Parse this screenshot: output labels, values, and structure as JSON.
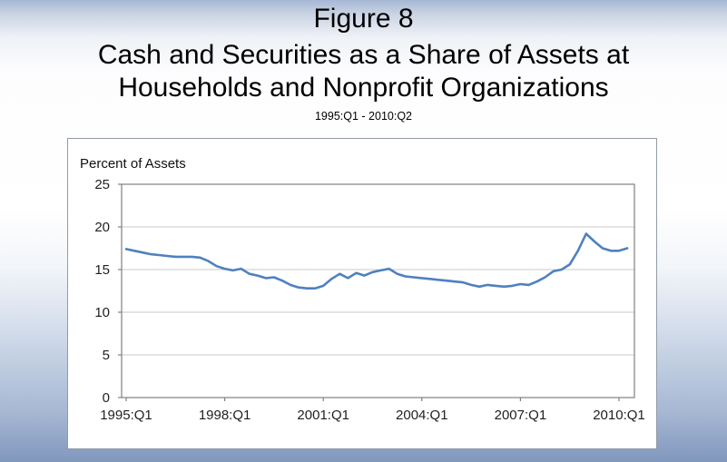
{
  "slide": {
    "figure_label": "Figure 8",
    "title_line1": "Cash and Securities as a Share of Assets at",
    "title_line2": "Households and Nonprofit Organizations",
    "subtitle": "1995:Q1 - 2010:Q2"
  },
  "chart_data": {
    "type": "line",
    "title": "Cash and Securities as a Share of Assets at Households and Nonprofit Organizations",
    "period": "1995:Q1 - 2010:Q2",
    "ylabel": "Percent of Assets",
    "xlabel": "",
    "ylim": [
      0,
      25
    ],
    "y_ticks": [
      0,
      5,
      10,
      15,
      20,
      25
    ],
    "x_tick_labels": [
      "1995:Q1",
      "1998:Q1",
      "2001:Q1",
      "2004:Q1",
      "2007:Q1",
      "2010:Q1"
    ],
    "x_tick_indices": [
      0,
      12,
      24,
      36,
      48,
      60
    ],
    "grid": "horizontal",
    "legend_position": "none",
    "x": [
      "1995:Q1",
      "1995:Q2",
      "1995:Q3",
      "1995:Q4",
      "1996:Q1",
      "1996:Q2",
      "1996:Q3",
      "1996:Q4",
      "1997:Q1",
      "1997:Q2",
      "1997:Q3",
      "1997:Q4",
      "1998:Q1",
      "1998:Q2",
      "1998:Q3",
      "1998:Q4",
      "1999:Q1",
      "1999:Q2",
      "1999:Q3",
      "1999:Q4",
      "2000:Q1",
      "2000:Q2",
      "2000:Q3",
      "2000:Q4",
      "2001:Q1",
      "2001:Q2",
      "2001:Q3",
      "2001:Q4",
      "2002:Q1",
      "2002:Q2",
      "2002:Q3",
      "2002:Q4",
      "2003:Q1",
      "2003:Q2",
      "2003:Q3",
      "2003:Q4",
      "2004:Q1",
      "2004:Q2",
      "2004:Q3",
      "2004:Q4",
      "2005:Q1",
      "2005:Q2",
      "2005:Q3",
      "2005:Q4",
      "2006:Q1",
      "2006:Q2",
      "2006:Q3",
      "2006:Q4",
      "2007:Q1",
      "2007:Q2",
      "2007:Q3",
      "2007:Q4",
      "2008:Q1",
      "2008:Q2",
      "2008:Q3",
      "2008:Q4",
      "2009:Q1",
      "2009:Q2",
      "2009:Q3",
      "2009:Q4",
      "2010:Q1",
      "2010:Q2"
    ],
    "values": [
      17.4,
      17.2,
      17.0,
      16.8,
      16.7,
      16.6,
      16.5,
      16.5,
      16.5,
      16.4,
      16.0,
      15.4,
      15.1,
      14.9,
      15.1,
      14.5,
      14.3,
      14.0,
      14.1,
      13.7,
      13.2,
      12.9,
      12.8,
      12.8,
      13.1,
      13.9,
      14.5,
      14.0,
      14.6,
      14.3,
      14.7,
      14.9,
      15.1,
      14.5,
      14.2,
      14.1,
      14.0,
      13.9,
      13.8,
      13.7,
      13.6,
      13.5,
      13.2,
      13.0,
      13.2,
      13.1,
      13.0,
      13.1,
      13.3,
      13.2,
      13.6,
      14.1,
      14.8,
      15.0,
      15.6,
      17.2,
      19.2,
      18.3,
      17.5,
      17.2,
      17.2,
      17.5
    ]
  },
  "colors": {
    "line": "#4f81bd",
    "gridline": "#c9c9c9",
    "axis": "#808080",
    "tick_text": "#1f1f1f",
    "panel": "#ffffff",
    "panel_border": "#929ba7",
    "background_top": "#a6b7d5",
    "background_bottom": "#8198bd"
  }
}
